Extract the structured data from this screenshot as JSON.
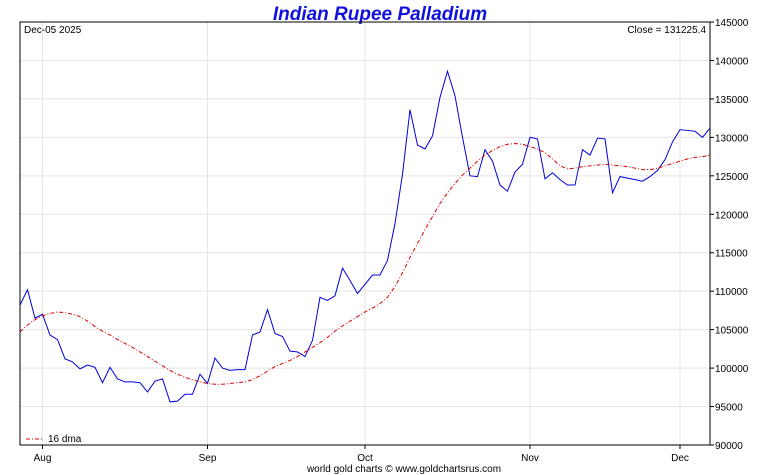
{
  "chart_data": {
    "type": "line",
    "title": "Indian Rupee Palladium",
    "date_label": "Dec-05  2025",
    "close_label": "Close = 131225.4",
    "footer": "world gold charts © www.goldchartsrus.com",
    "ylim": [
      90000,
      145000
    ],
    "y_ticks": [
      90000,
      95000,
      100000,
      105000,
      110000,
      115000,
      120000,
      125000,
      130000,
      135000,
      140000,
      145000
    ],
    "x_range": [
      0,
      81
    ],
    "x_ticks": [
      {
        "index": 3,
        "label": "Aug"
      },
      {
        "index": 25,
        "label": "Sep"
      },
      {
        "index": 46,
        "label": "Oct"
      },
      {
        "index": 68,
        "label": "Nov"
      },
      {
        "index": 88,
        "label": "Dec"
      }
    ],
    "grid": true,
    "legend_position": "bottom-left",
    "colors": {
      "price": "#0000dd",
      "dma": "#dd0000",
      "title": "#1010e0"
    },
    "series": [
      {
        "name": "",
        "style": "solid",
        "values": [
          108200,
          110200,
          106500,
          107000,
          104300,
          103700,
          101200,
          100800,
          99900,
          100400,
          100100,
          98100,
          100100,
          98600,
          98200,
          98200,
          98100,
          96900,
          98300,
          98600,
          95600,
          95700,
          96600,
          96600,
          99200,
          98000,
          101300,
          100000,
          99700,
          99800,
          99800,
          104300,
          104700,
          107600,
          104500,
          104100,
          102200,
          102100,
          101500,
          103600,
          109200,
          108800,
          109400,
          113000,
          111400,
          109700,
          110900,
          112100,
          112100,
          114000,
          118800,
          125200,
          133600,
          129000,
          128500,
          130200,
          135200,
          138600,
          135400,
          130000,
          125000,
          124900,
          128400,
          126900,
          123800,
          123000,
          125500,
          126500,
          130000,
          129800,
          124600,
          125400,
          124500,
          123800,
          123800,
          128400,
          127700,
          129900,
          129800,
          122800,
          124900,
          124700,
          124500,
          124300,
          124900,
          125700,
          127100,
          129400,
          131000,
          130900,
          130800,
          130000,
          131200
        ]
      },
      {
        "name": "16 dma",
        "style": "dash-dot",
        "values": [
          104700,
          105600,
          106300,
          106800,
          107100,
          107300,
          107200,
          107000,
          106700,
          106100,
          105400,
          104800,
          104300,
          103700,
          103200,
          102700,
          102100,
          101500,
          100900,
          100300,
          99700,
          99200,
          98800,
          98500,
          98200,
          98000,
          97900,
          97900,
          98000,
          98100,
          98200,
          98500,
          99000,
          99600,
          100200,
          100600,
          101000,
          101500,
          102100,
          102700,
          103300,
          104000,
          104800,
          105500,
          106100,
          106700,
          107300,
          107800,
          108400,
          109200,
          110600,
          112400,
          114400,
          116200,
          118000,
          119700,
          121400,
          122800,
          124000,
          125100,
          126000,
          126900,
          127700,
          128300,
          128800,
          129100,
          129200,
          129100,
          128800,
          128500,
          128000,
          127200,
          126300,
          125900,
          126000,
          126200,
          126300,
          126400,
          126500,
          126400,
          126300,
          126200,
          126000,
          125800,
          125800,
          126000,
          126300,
          126600,
          126900,
          127200,
          127400,
          127500,
          127700
        ]
      }
    ]
  }
}
